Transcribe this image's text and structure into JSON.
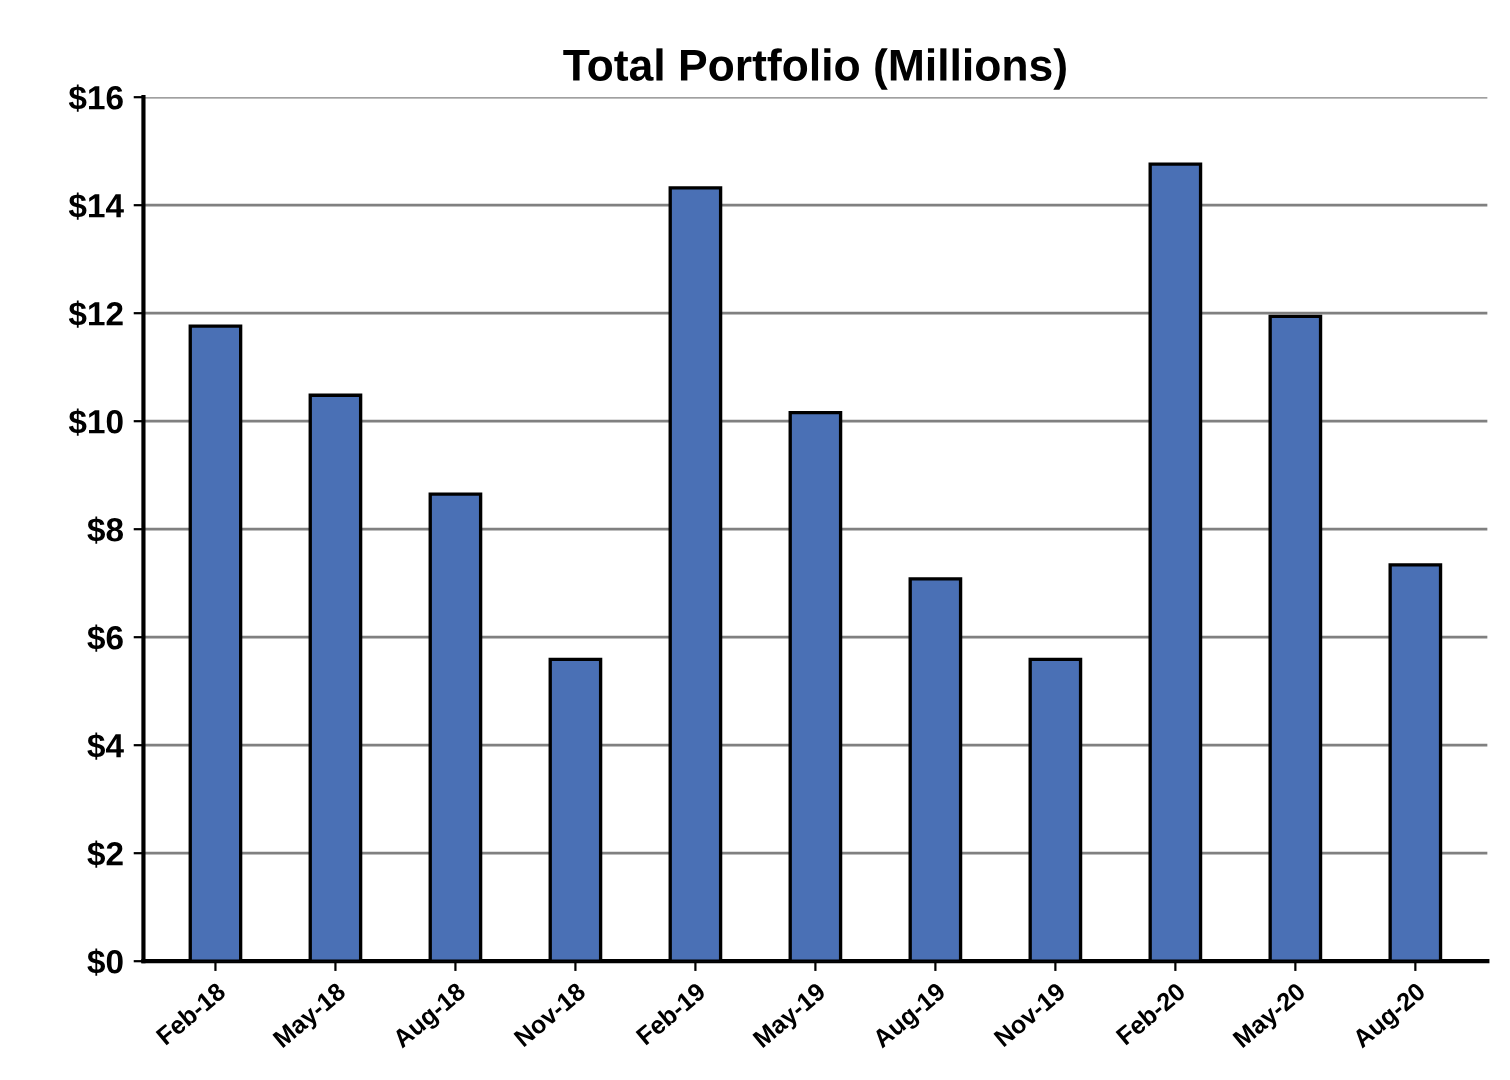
{
  "chart_data": {
    "type": "bar",
    "title": "Total Portfolio (Millions)",
    "categories": [
      "Feb-18",
      "May-18",
      "Aug-18",
      "Nov-18",
      "Feb-19",
      "May-19",
      "Aug-19",
      "Nov-19",
      "Feb-20",
      "May-20",
      "Aug-20"
    ],
    "values": [
      11.76,
      10.48,
      8.65,
      5.59,
      14.32,
      10.16,
      7.08,
      5.59,
      14.76,
      11.94,
      7.34
    ],
    "color": "#4a70b5",
    "ylim": [
      0,
      16
    ],
    "yticks": [
      {
        "value": 0,
        "label": "$0"
      },
      {
        "value": 2,
        "label": "$2"
      },
      {
        "value": 4,
        "label": "$4"
      },
      {
        "value": 6,
        "label": "$6"
      },
      {
        "value": 8,
        "label": "$8"
      },
      {
        "value": 10,
        "label": "$10"
      },
      {
        "value": 12,
        "label": "$12"
      },
      {
        "value": 14,
        "label": "$14"
      },
      {
        "value": 16,
        "label": "$16"
      }
    ],
    "grid": "y"
  }
}
